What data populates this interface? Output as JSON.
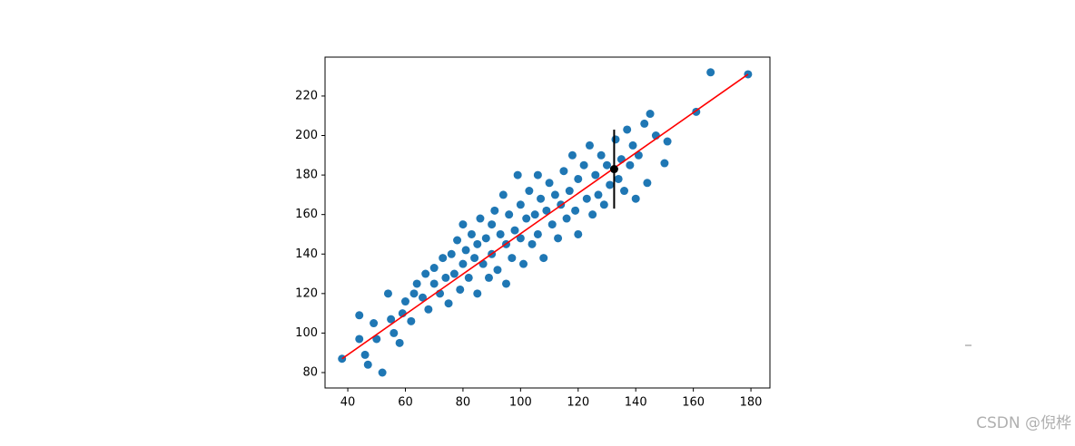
{
  "chart_data": {
    "type": "scatter",
    "color": "#1f77b4",
    "x": [
      38,
      44,
      44,
      46,
      47,
      52,
      49,
      50,
      54,
      55,
      56,
      58,
      59,
      60,
      62,
      63,
      64,
      66,
      67,
      68,
      70,
      70,
      72,
      73,
      74,
      75,
      76,
      77,
      78,
      79,
      80,
      80,
      81,
      82,
      83,
      84,
      85,
      85,
      86,
      87,
      88,
      89,
      90,
      90,
      91,
      92,
      93,
      94,
      95,
      95,
      96,
      97,
      98,
      99,
      100,
      100,
      101,
      102,
      103,
      104,
      105,
      106,
      106,
      107,
      108,
      109,
      110,
      111,
      112,
      113,
      114,
      115,
      116,
      117,
      118,
      119,
      120,
      120,
      122,
      123,
      124,
      125,
      126,
      127,
      128,
      129,
      130,
      131,
      133,
      134,
      135,
      136,
      137,
      138,
      139,
      140,
      141,
      143,
      144,
      145,
      147,
      150,
      151,
      161,
      166,
      179
    ],
    "values": [
      87,
      109,
      97,
      89,
      84,
      80,
      105,
      97,
      120,
      107,
      100,
      95,
      110,
      116,
      106,
      120,
      125,
      118,
      130,
      112,
      125,
      133,
      120,
      138,
      128,
      115,
      140,
      130,
      147,
      122,
      135,
      155,
      142,
      128,
      150,
      138,
      120,
      145,
      158,
      135,
      148,
      128,
      155,
      140,
      162,
      132,
      150,
      170,
      145,
      125,
      160,
      138,
      152,
      180,
      148,
      165,
      135,
      158,
      172,
      145,
      160,
      180,
      150,
      168,
      138,
      162,
      176,
      155,
      170,
      148,
      165,
      182,
      158,
      172,
      190,
      162,
      178,
      150,
      185,
      168,
      195,
      160,
      180,
      170,
      190,
      165,
      185,
      175,
      198,
      178,
      188,
      172,
      203,
      185,
      195,
      168,
      190,
      206,
      176,
      211,
      200,
      186,
      197,
      212,
      232,
      231
    ],
    "fit_line": {
      "x": [
        38,
        179
      ],
      "values": [
        87,
        231
      ],
      "color": "#ff0000"
    },
    "error_bar": {
      "x": 132.5,
      "value": 183,
      "error": 20,
      "color": "#000000"
    },
    "xlim": [
      32.1,
      186.6
    ],
    "ylim": [
      72.2,
      239.7
    ],
    "xticks": [
      40,
      60,
      80,
      100,
      120,
      140,
      160,
      180
    ],
    "yticks": [
      80,
      100,
      120,
      140,
      160,
      180,
      200,
      220
    ],
    "watermark": "CSDN @倪桦"
  }
}
